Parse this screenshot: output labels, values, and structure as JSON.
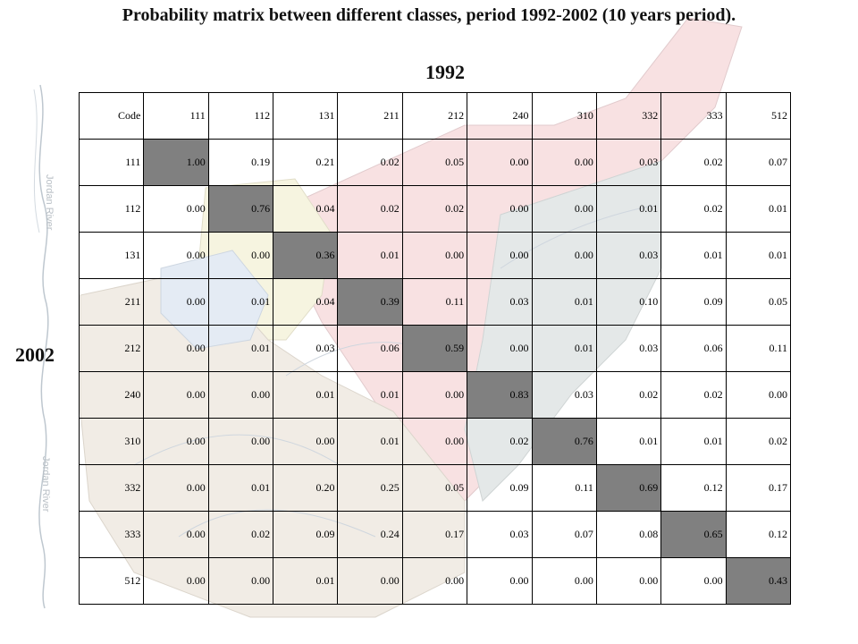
{
  "title": "Probability matrix between different classes, period 1992-2002 (10 years period).",
  "column_year": "1992",
  "row_year": "2002",
  "background_map": {
    "label_1": "Jordan River",
    "label_2": "Jordan River"
  },
  "matrix": {
    "corner": "Code",
    "columns": [
      "111",
      "112",
      "131",
      "211",
      "212",
      "240",
      "310",
      "332",
      "333",
      "512"
    ],
    "rows": [
      {
        "code": "111",
        "values": [
          "1.00",
          "0.19",
          "0.21",
          "0.02",
          "0.05",
          "0.00",
          "0.00",
          "0.03",
          "0.02",
          "0.07"
        ]
      },
      {
        "code": "112",
        "values": [
          "0.00",
          "0.76",
          "0.04",
          "0.02",
          "0.02",
          "0.00",
          "0.00",
          "0.01",
          "0.02",
          "0.01"
        ]
      },
      {
        "code": "131",
        "values": [
          "0.00",
          "0.00",
          "0.36",
          "0.01",
          "0.00",
          "0.00",
          "0.00",
          "0.03",
          "0.01",
          "0.01"
        ]
      },
      {
        "code": "211",
        "values": [
          "0.00",
          "0.01",
          "0.04",
          "0.39",
          "0.11",
          "0.03",
          "0.01",
          "0.10",
          "0.09",
          "0.05"
        ]
      },
      {
        "code": "212",
        "values": [
          "0.00",
          "0.01",
          "0.03",
          "0.06",
          "0.59",
          "0.00",
          "0.01",
          "0.03",
          "0.06",
          "0.11"
        ]
      },
      {
        "code": "240",
        "values": [
          "0.00",
          "0.00",
          "0.01",
          "0.01",
          "0.00",
          "0.83",
          "0.03",
          "0.02",
          "0.02",
          "0.00"
        ]
      },
      {
        "code": "310",
        "values": [
          "0.00",
          "0.00",
          "0.00",
          "0.01",
          "0.00",
          "0.02",
          "0.76",
          "0.01",
          "0.01",
          "0.02"
        ]
      },
      {
        "code": "332",
        "values": [
          "0.00",
          "0.01",
          "0.20",
          "0.25",
          "0.05",
          "0.09",
          "0.11",
          "0.69",
          "0.12",
          "0.17"
        ]
      },
      {
        "code": "333",
        "values": [
          "0.00",
          "0.02",
          "0.09",
          "0.24",
          "0.17",
          "0.03",
          "0.07",
          "0.08",
          "0.65",
          "0.12"
        ]
      },
      {
        "code": "512",
        "values": [
          "0.00",
          "0.00",
          "0.01",
          "0.00",
          "0.00",
          "0.00",
          "0.00",
          "0.00",
          "0.00",
          "0.43"
        ]
      }
    ]
  }
}
